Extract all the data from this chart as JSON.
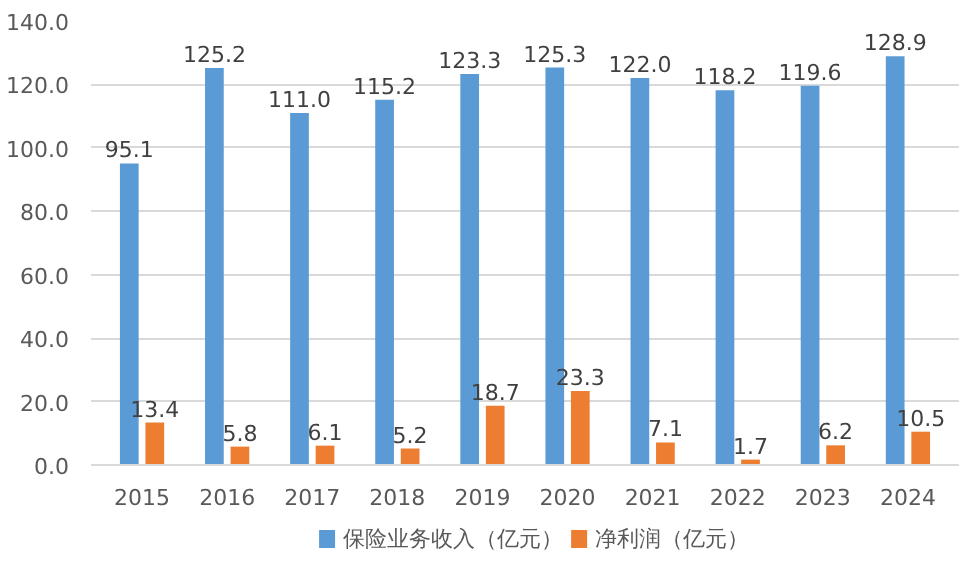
{
  "chart_data": {
    "type": "bar",
    "categories": [
      "2015",
      "2016",
      "2017",
      "2018",
      "2019",
      "2020",
      "2021",
      "2022",
      "2023",
      "2024"
    ],
    "series": [
      {
        "name": "保险业务收入（亿元）",
        "color": "#5b9bd5",
        "values": [
          95.1,
          125.2,
          111.0,
          115.2,
          123.3,
          125.3,
          122.0,
          118.2,
          119.6,
          128.9
        ],
        "value_labels": [
          "95.1",
          "125.2",
          "111.0",
          "115.2",
          "123.3",
          "125.3",
          "122.0",
          "118.2",
          "119.6",
          "128.9"
        ]
      },
      {
        "name": "净利润（亿元）",
        "color": "#ed7d31",
        "values": [
          13.4,
          5.8,
          6.1,
          5.2,
          18.7,
          23.3,
          7.1,
          1.7,
          6.2,
          10.5
        ],
        "value_labels": [
          "13.4",
          "5.8",
          "6.1",
          "5.2",
          "18.7",
          "23.3",
          "7.1",
          "1.7",
          "6.2",
          "10.5"
        ]
      }
    ],
    "ylim": [
      0,
      140
    ],
    "yticks": [
      {
        "value": 0,
        "label": "0.0"
      },
      {
        "value": 20,
        "label": "20.0"
      },
      {
        "value": 40,
        "label": "40.0"
      },
      {
        "value": 60,
        "label": "60.0"
      },
      {
        "value": 80,
        "label": "80.0"
      },
      {
        "value": 100,
        "label": "100.0"
      },
      {
        "value": 120,
        "label": "120.0"
      },
      {
        "value": 140,
        "label": "140.0"
      }
    ],
    "grid": "y",
    "legend": "bottom",
    "data_labels": true
  }
}
